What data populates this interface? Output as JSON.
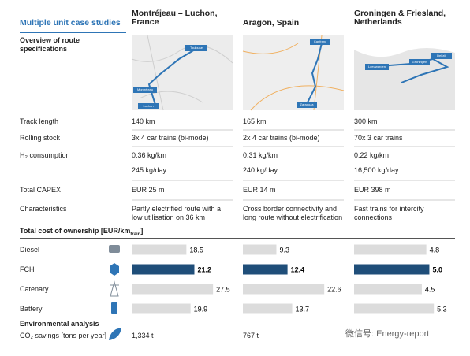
{
  "header": {
    "section_title": "Multiple unit case studies",
    "overview": "Overview of route specifications"
  },
  "row_labels": [
    "Track length",
    "Rolling stock",
    "H₂ consumption",
    "Total CAPEX",
    "Characteristics"
  ],
  "columns": [
    {
      "title": "Montréjeau – Luchon, France",
      "map_labels": [
        "Toulouse",
        "Montréjeau",
        "Luchon"
      ],
      "cells": [
        "140 km",
        "3x 4 car trains (bi-mode)",
        "0.36 kg/km",
        "245 kg/day",
        "EUR 25 m",
        "Partly electrified route with a low utilisation on 36 km"
      ]
    },
    {
      "title": "Aragon, Spain",
      "map_labels": [
        "Canfranc",
        "Zaragoza"
      ],
      "cells": [
        "165 km",
        "2x 4 car trains (bi-mode)",
        "0.31 kg/km",
        "240 kg/day",
        "EUR 14 m",
        "Cross border connectivity and long route without electrification"
      ]
    },
    {
      "title": "Groningen & Friesland, Netherlands",
      "map_labels": [
        "Groningen",
        "Leeuwarden",
        "Delfzijl"
      ],
      "cells": [
        "300 km",
        "70x 3 car trains",
        "0.22 kg/km",
        "16,500 kg/day",
        "EUR 398 m",
        "Fast trains for intercity connections"
      ]
    }
  ],
  "tco": {
    "title": {
      "text": "Total cost of ownership [EUR/km",
      "sub": "train",
      "end": "]"
    },
    "categories": [
      "Diesel",
      "FCH",
      "Catenary",
      "Battery"
    ],
    "colors": [
      "#dcdcdc",
      "#1f4e79",
      "#dcdcdc",
      "#dcdcdc"
    ],
    "panels": [
      {
        "values": [
          18.5,
          21.2,
          27.5,
          19.9
        ],
        "xlim": [
          0,
          28
        ]
      },
      {
        "values": [
          9.3,
          12.4,
          22.6,
          13.7
        ],
        "xlim": [
          0,
          23
        ]
      },
      {
        "values": [
          4.8,
          5.0,
          4.5,
          5.3
        ],
        "value_labels": [
          "4.8",
          "5.0",
          "4.5",
          "5.3"
        ],
        "xlim": [
          0,
          5.5
        ]
      }
    ]
  },
  "environment": {
    "title": "Environmental analysis",
    "label": "CO₂ savings [tons per year]",
    "values": [
      "1,334 t",
      "767 t"
    ]
  },
  "watermark": "微信号: Energy-report"
}
